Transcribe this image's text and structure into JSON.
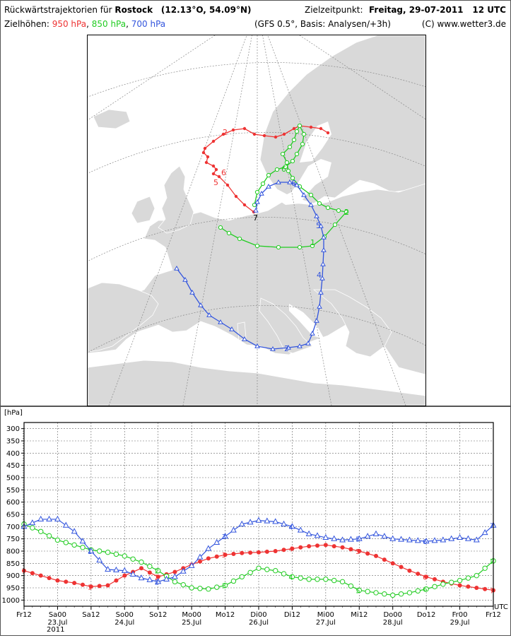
{
  "header": {
    "title_prefix": "Rückwärtstrajektorien für",
    "city": "Rostock",
    "coords": "(12.13°O, 54.09°N)",
    "target_label": "Zielzeitpunkt:",
    "target_value": "Freitag, 29-07-2011",
    "target_utc": "12 UTC",
    "levels_label": "Zielhöhen:",
    "level_950": "950 hPa",
    "level_850": "850 hPa",
    "level_700": "700 hPa",
    "sep1": ",",
    "sep2": ",",
    "model": "(GFS 0.5°, Basis: Analysen/+3h)",
    "copyright": "(C) www.wetter3.de"
  },
  "colors": {
    "red": "#ee3333",
    "green": "#22cc22",
    "blue": "#3355dd",
    "land": "#d9d9d9",
    "grid": "#888888"
  },
  "map": {
    "labels_red": [
      "2",
      "6",
      "5",
      "7"
    ],
    "labels_green": [
      "1",
      "2",
      "6"
    ],
    "labels_blue": [
      "2",
      "4",
      "5",
      "6"
    ]
  },
  "chart_data": {
    "type": "line",
    "unit_label": "[hPa]",
    "utc_label": "UTC",
    "y_ticks": [
      300,
      350,
      400,
      450,
      500,
      550,
      600,
      650,
      700,
      750,
      800,
      850,
      900,
      950,
      1000
    ],
    "ylim": [
      1025,
      275
    ],
    "x_tick_labels": [
      "Fr12",
      "Sa00",
      "Sa12",
      "So00",
      "So12",
      "Mo00",
      "Mo12",
      "Di00",
      "Di12",
      "Mi00",
      "Mi12",
      "Do00",
      "Do12",
      "Fr00",
      "Fr12"
    ],
    "date_labels": [
      {
        "label": "23.Jul",
        "hour": 12
      },
      {
        "label": "24.Jul",
        "hour": 36
      },
      {
        "label": "25.Jul",
        "hour": 60
      },
      {
        "label": "26.Jul",
        "hour": 84
      },
      {
        "label": "27.Jul",
        "hour": 108
      },
      {
        "label": "28.Jul",
        "hour": 132
      },
      {
        "label": "29.Jul",
        "hour": 156
      }
    ],
    "year_label": "2011",
    "x_range_hours": [
      0,
      168
    ],
    "series": [
      {
        "name": "950 hPa",
        "color": "#ee3333",
        "marker": "dot",
        "x": [
          0,
          6,
          12,
          18,
          24,
          30,
          36,
          42,
          48,
          54,
          60,
          66,
          72,
          78,
          84,
          90,
          96,
          102,
          108,
          114,
          120,
          126,
          132,
          138,
          144,
          150,
          156,
          162,
          168
        ],
        "y": [
          880,
          900,
          920,
          930,
          945,
          940,
          900,
          870,
          905,
          885,
          855,
          830,
          815,
          808,
          805,
          800,
          790,
          780,
          775,
          785,
          800,
          820,
          850,
          880,
          905,
          925,
          940,
          950,
          960
        ],
        "markers": [
          {
            "x": 24,
            "label": "1"
          },
          {
            "x": 48,
            "label": "2"
          },
          {
            "x": 72,
            "label": "3"
          },
          {
            "x": 96,
            "label": "4"
          },
          {
            "x": 120,
            "label": "5"
          },
          {
            "x": 144,
            "label": "6"
          },
          {
            "x": 168,
            "label": "7"
          }
        ]
      },
      {
        "name": "850 hPa",
        "color": "#22cc22",
        "marker": "circle",
        "x": [
          0,
          6,
          12,
          18,
          24,
          30,
          36,
          42,
          48,
          54,
          60,
          66,
          72,
          78,
          84,
          90,
          96,
          102,
          108,
          114,
          120,
          126,
          132,
          138,
          144,
          150,
          156,
          162,
          168
        ],
        "y": [
          690,
          720,
          755,
          775,
          795,
          805,
          820,
          845,
          880,
          925,
          950,
          955,
          940,
          905,
          870,
          880,
          905,
          915,
          915,
          925,
          960,
          970,
          980,
          970,
          955,
          935,
          920,
          900,
          840
        ],
        "markers": [
          {
            "x": 24,
            "label": "1"
          },
          {
            "x": 48,
            "label": "2"
          },
          {
            "x": 72,
            "label": "3"
          },
          {
            "x": 96,
            "label": "4"
          },
          {
            "x": 120,
            "label": "5"
          },
          {
            "x": 144,
            "label": "6"
          },
          {
            "x": 168,
            "label": "7"
          }
        ]
      },
      {
        "name": "700 hPa",
        "color": "#3355dd",
        "marker": "triangle",
        "x": [
          0,
          6,
          12,
          18,
          24,
          30,
          36,
          42,
          48,
          54,
          60,
          66,
          72,
          78,
          84,
          90,
          96,
          102,
          108,
          114,
          120,
          126,
          132,
          138,
          144,
          150,
          156,
          162,
          168
        ],
        "y": [
          700,
          670,
          670,
          720,
          800,
          875,
          880,
          910,
          925,
          905,
          860,
          790,
          740,
          690,
          675,
          680,
          700,
          730,
          745,
          755,
          750,
          730,
          750,
          755,
          760,
          755,
          745,
          755,
          695
        ],
        "markers": [
          {
            "x": 24,
            "label": "1"
          },
          {
            "x": 48,
            "label": "2"
          },
          {
            "x": 72,
            "label": "3"
          },
          {
            "x": 96,
            "label": "4"
          },
          {
            "x": 120,
            "label": "5"
          },
          {
            "x": 144,
            "label": "6"
          },
          {
            "x": 168,
            "label": "7"
          }
        ]
      }
    ]
  }
}
